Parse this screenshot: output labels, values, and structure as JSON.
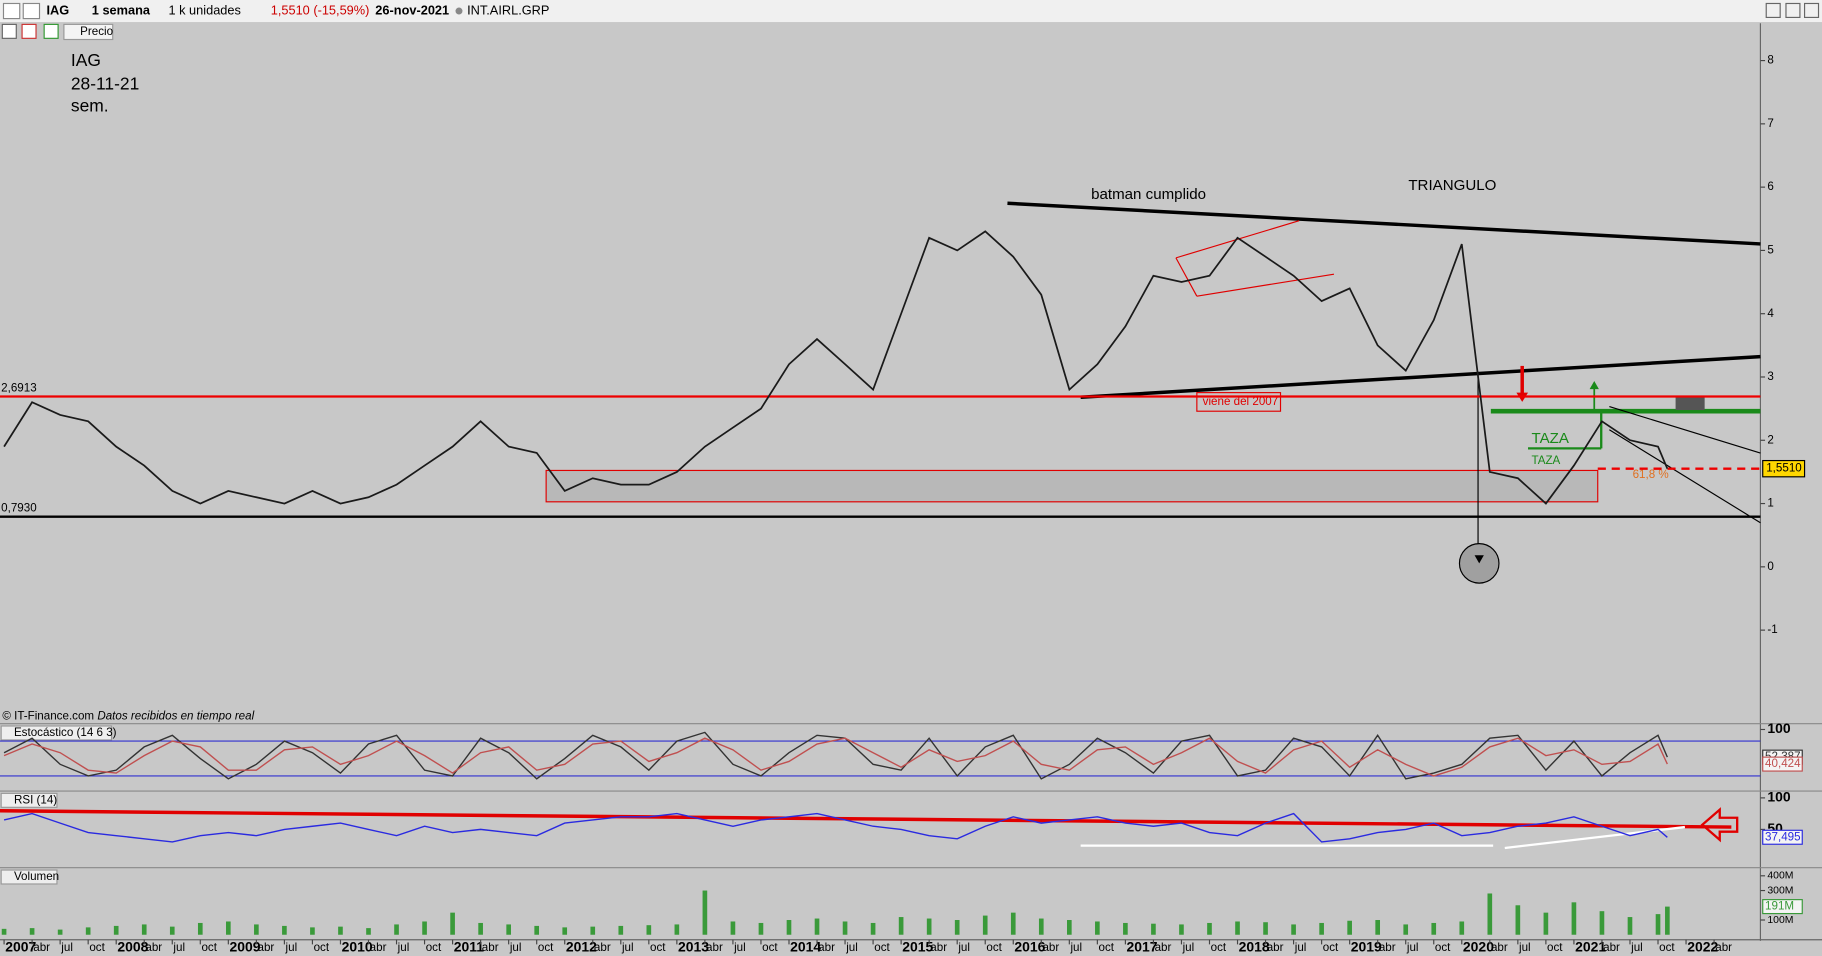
{
  "toolbar": {
    "symbol": "IAG",
    "period": "1 semana",
    "units": "1 k unidades",
    "change": "1,5510 (-15,59%)",
    "date": "26-nov-2021",
    "name": "INT.AIRL.GRP",
    "series_button": "Precio"
  },
  "source": {
    "site": "© IT-Finance.com",
    "note": "Datos recibidos en tiempo real"
  },
  "chart_data": [
    {
      "type": "line",
      "notes": [
        "IAG",
        "28-11-21",
        "sem."
      ],
      "annotations": [
        "batman cumplido",
        "TRIANGULO",
        "viene del  2007",
        "TAZA",
        "TAZA",
        "61,8 %"
      ],
      "x": [
        "2007-01",
        "2007-04",
        "2007-07",
        "2007-10",
        "2008-01",
        "2008-04",
        "2008-07",
        "2008-10",
        "2009-01",
        "2009-04",
        "2009-07",
        "2009-10",
        "2010-01",
        "2010-04",
        "2010-07",
        "2010-10",
        "2011-01",
        "2011-04",
        "2011-07",
        "2011-10",
        "2012-01",
        "2012-04",
        "2012-07",
        "2012-10",
        "2013-01",
        "2013-04",
        "2013-07",
        "2013-10",
        "2014-01",
        "2014-04",
        "2014-07",
        "2014-10",
        "2015-01",
        "2015-04",
        "2015-07",
        "2015-10",
        "2016-01",
        "2016-04",
        "2016-07",
        "2016-10",
        "2017-01",
        "2017-04",
        "2017-07",
        "2017-10",
        "2018-01",
        "2018-04",
        "2018-07",
        "2018-10",
        "2019-01",
        "2019-04",
        "2019-07",
        "2019-10",
        "2020-01",
        "2020-04",
        "2020-07",
        "2020-10",
        "2021-01",
        "2021-04",
        "2021-07",
        "2021-10",
        "2021-11"
      ],
      "series": [
        {
          "color": "#1a1a1a",
          "values": [
            1.9,
            2.6,
            2.4,
            2.3,
            1.9,
            1.6,
            1.2,
            1.0,
            1.2,
            1.1,
            1.0,
            1.2,
            1.0,
            1.1,
            1.3,
            1.6,
            1.9,
            2.3,
            1.9,
            1.8,
            1.2,
            1.4,
            1.3,
            1.3,
            1.5,
            1.9,
            2.2,
            2.5,
            3.2,
            3.6,
            3.2,
            2.8,
            4.0,
            5.2,
            5.0,
            5.3,
            4.9,
            4.3,
            2.8,
            3.2,
            3.8,
            4.6,
            4.5,
            4.6,
            5.2,
            4.9,
            4.6,
            4.2,
            4.4,
            3.5,
            3.1,
            3.9,
            5.1,
            1.5,
            1.4,
            1.0,
            1.6,
            2.3,
            2.0,
            1.9,
            1.551
          ]
        }
      ],
      "hlines": [
        {
          "value": 2.6913,
          "label": "2,6913",
          "color": "#ee0000"
        },
        {
          "value": 0.793,
          "label": "0,7930",
          "color": "#000000"
        },
        {
          "value": 1.551,
          "label": "1,5510",
          "color": "#ee0000",
          "style": "dashed"
        }
      ],
      "ylim": [
        -2.46,
        8.59
      ],
      "yticks": [
        -1,
        0,
        1,
        2,
        3,
        4,
        5,
        6,
        7,
        8
      ]
    },
    {
      "type": "line",
      "title": "Estocástico (14 6 3)",
      "x": [
        "2007-01",
        "2007-04",
        "2007-07",
        "2007-10",
        "2008-01",
        "2008-04",
        "2008-07",
        "2008-10",
        "2009-01",
        "2009-04",
        "2009-07",
        "2009-10",
        "2010-01",
        "2010-04",
        "2010-07",
        "2010-10",
        "2011-01",
        "2011-04",
        "2011-07",
        "2011-10",
        "2012-01",
        "2012-04",
        "2012-07",
        "2012-10",
        "2013-01",
        "2013-04",
        "2013-07",
        "2013-10",
        "2014-01",
        "2014-04",
        "2014-07",
        "2014-10",
        "2015-01",
        "2015-04",
        "2015-07",
        "2015-10",
        "2016-01",
        "2016-04",
        "2016-07",
        "2016-10",
        "2017-01",
        "2017-04",
        "2017-07",
        "2017-10",
        "2018-01",
        "2018-04",
        "2018-07",
        "2018-10",
        "2019-01",
        "2019-04",
        "2019-07",
        "2019-10",
        "2020-01",
        "2020-04",
        "2020-07",
        "2020-10",
        "2021-01",
        "2021-04",
        "2021-07",
        "2021-10",
        "2021-11"
      ],
      "series": [
        {
          "color": "#333333",
          "values": [
            60,
            85,
            40,
            20,
            30,
            70,
            90,
            50,
            15,
            40,
            80,
            60,
            25,
            75,
            90,
            30,
            20,
            85,
            60,
            15,
            50,
            90,
            70,
            30,
            80,
            95,
            40,
            20,
            60,
            90,
            85,
            40,
            30,
            85,
            20,
            70,
            90,
            15,
            40,
            85,
            60,
            25,
            80,
            90,
            20,
            30,
            85,
            70,
            20,
            90,
            15,
            25,
            40,
            85,
            90,
            30,
            80,
            20,
            60,
            90,
            52.387
          ],
          "last_label": "52,387"
        },
        {
          "color": "#c05050",
          "values": [
            55,
            75,
            60,
            30,
            25,
            55,
            80,
            70,
            30,
            30,
            65,
            70,
            40,
            55,
            80,
            55,
            25,
            60,
            70,
            30,
            40,
            75,
            80,
            45,
            60,
            85,
            65,
            30,
            45,
            75,
            85,
            60,
            35,
            65,
            45,
            55,
            80,
            40,
            30,
            65,
            70,
            40,
            60,
            85,
            45,
            25,
            65,
            80,
            35,
            65,
            40,
            20,
            35,
            70,
            85,
            55,
            65,
            40,
            45,
            75,
            40.424
          ],
          "last_label": "40,424"
        }
      ],
      "hlines": [
        {
          "value": 80,
          "color": "#3030d0"
        },
        {
          "value": 20,
          "color": "#3030d0"
        }
      ],
      "ylim": [
        -4,
        108
      ],
      "yticks": [
        100
      ]
    },
    {
      "type": "line",
      "title": "RSI (14)",
      "x": [
        "2007-01",
        "2007-04",
        "2007-07",
        "2007-10",
        "2008-01",
        "2008-04",
        "2008-07",
        "2008-10",
        "2009-01",
        "2009-04",
        "2009-07",
        "2009-10",
        "2010-01",
        "2010-04",
        "2010-07",
        "2010-10",
        "2011-01",
        "2011-04",
        "2011-07",
        "2011-10",
        "2012-01",
        "2012-04",
        "2012-07",
        "2012-10",
        "2013-01",
        "2013-04",
        "2013-07",
        "2013-10",
        "2014-01",
        "2014-04",
        "2014-07",
        "2014-10",
        "2015-01",
        "2015-04",
        "2015-07",
        "2015-10",
        "2016-01",
        "2016-04",
        "2016-07",
        "2016-10",
        "2017-01",
        "2017-04",
        "2017-07",
        "2017-10",
        "2018-01",
        "2018-04",
        "2018-07",
        "2018-10",
        "2019-01",
        "2019-04",
        "2019-07",
        "2019-10",
        "2020-01",
        "2020-04",
        "2020-07",
        "2020-10",
        "2021-01",
        "2021-04",
        "2021-07",
        "2021-10",
        "2021-11"
      ],
      "series": [
        {
          "color": "#2a2ae0",
          "values": [
            65,
            75,
            60,
            45,
            40,
            35,
            30,
            40,
            45,
            40,
            50,
            55,
            60,
            50,
            40,
            55,
            45,
            50,
            45,
            40,
            60,
            65,
            70,
            70,
            75,
            65,
            55,
            65,
            70,
            75,
            65,
            55,
            50,
            40,
            35,
            55,
            70,
            60,
            65,
            70,
            60,
            55,
            60,
            45,
            40,
            60,
            75,
            30,
            35,
            45,
            50,
            60,
            40,
            45,
            55,
            60,
            70,
            55,
            40,
            50,
            37.495
          ],
          "last_label": "37,495"
        }
      ],
      "ylim": [
        -9,
        109
      ],
      "yticks": [
        100,
        50
      ]
    },
    {
      "type": "bar",
      "title": "Volumen",
      "x": [
        "2007-01",
        "2007-04",
        "2007-07",
        "2007-10",
        "2008-01",
        "2008-04",
        "2008-07",
        "2008-10",
        "2009-01",
        "2009-04",
        "2009-07",
        "2009-10",
        "2010-01",
        "2010-04",
        "2010-07",
        "2010-10",
        "2011-01",
        "2011-04",
        "2011-07",
        "2011-10",
        "2012-01",
        "2012-04",
        "2012-07",
        "2012-10",
        "2013-01",
        "2013-04",
        "2013-07",
        "2013-10",
        "2014-01",
        "2014-04",
        "2014-07",
        "2014-10",
        "2015-01",
        "2015-04",
        "2015-07",
        "2015-10",
        "2016-01",
        "2016-04",
        "2016-07",
        "2016-10",
        "2017-01",
        "2017-04",
        "2017-07",
        "2017-10",
        "2018-01",
        "2018-04",
        "2018-07",
        "2018-10",
        "2019-01",
        "2019-04",
        "2019-07",
        "2019-10",
        "2020-01",
        "2020-04",
        "2020-07",
        "2020-10",
        "2021-01",
        "2021-04",
        "2021-07",
        "2021-10",
        "2021-11"
      ],
      "series": [
        {
          "color": "#3a9a3a",
          "values": [
            40000000,
            45000000,
            35000000,
            50000000,
            60000000,
            70000000,
            55000000,
            80000000,
            90000000,
            70000000,
            60000000,
            50000000,
            55000000,
            45000000,
            70000000,
            90000000,
            150000000,
            80000000,
            70000000,
            60000000,
            50000000,
            55000000,
            60000000,
            65000000,
            70000000,
            300000000,
            90000000,
            80000000,
            100000000,
            110000000,
            90000000,
            80000000,
            120000000,
            110000000,
            100000000,
            130000000,
            150000000,
            110000000,
            100000000,
            90000000,
            80000000,
            75000000,
            70000000,
            80000000,
            90000000,
            85000000,
            70000000,
            80000000,
            95000000,
            100000000,
            70000000,
            80000000,
            90000000,
            280000000,
            200000000,
            150000000,
            220000000,
            160000000,
            120000000,
            140000000,
            191000000
          ],
          "last_label": "191M"
        }
      ],
      "ylim": [
        -26000000,
        447000000
      ],
      "yticks": [
        {
          "value": 100000000,
          "label": "100M"
        },
        {
          "value": 300000000,
          "label": "300M"
        },
        {
          "value": 400000000,
          "label": "400M"
        }
      ],
      "xticks": [
        {
          "value": "2007-01",
          "label": "2007"
        },
        {
          "value": "2007-04",
          "label": "abr"
        },
        {
          "value": "2007-07",
          "label": "jul"
        },
        {
          "value": "2007-10",
          "label": "oct"
        },
        {
          "value": "2008-01",
          "label": "2008"
        },
        {
          "value": "2008-04",
          "label": "abr"
        },
        {
          "value": "2008-07",
          "label": "jul"
        },
        {
          "value": "2008-10",
          "label": "oct"
        },
        {
          "value": "2009-01",
          "label": "2009"
        },
        {
          "value": "2009-04",
          "label": "abr"
        },
        {
          "value": "2009-07",
          "label": "jul"
        },
        {
          "value": "2009-10",
          "label": "oct"
        },
        {
          "value": "2010-01",
          "label": "2010"
        },
        {
          "value": "2010-04",
          "label": "abr"
        },
        {
          "value": "2010-07",
          "label": "jul"
        },
        {
          "value": "2010-10",
          "label": "oct"
        },
        {
          "value": "2011-01",
          "label": "2011"
        },
        {
          "value": "2011-04",
          "label": "abr"
        },
        {
          "value": "2011-07",
          "label": "jul"
        },
        {
          "value": "2011-10",
          "label": "oct"
        },
        {
          "value": "2012-01",
          "label": "2012"
        },
        {
          "value": "2012-04",
          "label": "abr"
        },
        {
          "value": "2012-07",
          "label": "jul"
        },
        {
          "value": "2012-10",
          "label": "oct"
        },
        {
          "value": "2013-01",
          "label": "2013"
        },
        {
          "value": "2013-04",
          "label": "abr"
        },
        {
          "value": "2013-07",
          "label": "jul"
        },
        {
          "value": "2013-10",
          "label": "oct"
        },
        {
          "value": "2014-01",
          "label": "2014"
        },
        {
          "value": "2014-04",
          "label": "abr"
        },
        {
          "value": "2014-07",
          "label": "jul"
        },
        {
          "value": "2014-10",
          "label": "oct"
        },
        {
          "value": "2015-01",
          "label": "2015"
        },
        {
          "value": "2015-04",
          "label": "abr"
        },
        {
          "value": "2015-07",
          "label": "jul"
        },
        {
          "value": "2015-10",
          "label": "oct"
        },
        {
          "value": "2016-01",
          "label": "2016"
        },
        {
          "value": "2016-04",
          "label": "abr"
        },
        {
          "value": "2016-07",
          "label": "jul"
        },
        {
          "value": "2016-10",
          "label": "oct"
        },
        {
          "value": "2017-01",
          "label": "2017"
        },
        {
          "value": "2017-04",
          "label": "abr"
        },
        {
          "value": "2017-07",
          "label": "jul"
        },
        {
          "value": "2017-10",
          "label": "oct"
        },
        {
          "value": "2018-01",
          "label": "2018"
        },
        {
          "value": "2018-04",
          "label": "abr"
        },
        {
          "value": "2018-07",
          "label": "jul"
        },
        {
          "value": "2018-10",
          "label": "oct"
        },
        {
          "value": "2019-01",
          "label": "2019"
        },
        {
          "value": "2019-04",
          "label": "abr"
        },
        {
          "value": "2019-07",
          "label": "jul"
        },
        {
          "value": "2019-10",
          "label": "oct"
        },
        {
          "value": "2020-01",
          "label": "2020"
        },
        {
          "value": "2020-04",
          "label": "abr"
        },
        {
          "value": "2020-07",
          "label": "jul"
        },
        {
          "value": "2020-10",
          "label": "oct"
        },
        {
          "value": "2021-01",
          "label": "2021"
        },
        {
          "value": "2021-04",
          "label": "abr"
        },
        {
          "value": "2021-07",
          "label": "jul"
        },
        {
          "value": "2021-10",
          "label": "oct"
        },
        {
          "value": "2022-01",
          "label": "2022"
        },
        {
          "value": "2022-04",
          "label": "abr"
        }
      ]
    }
  ]
}
